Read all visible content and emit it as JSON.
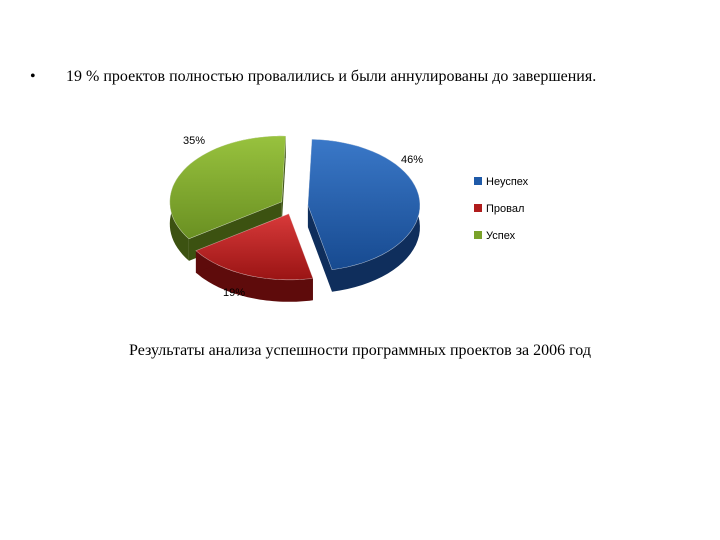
{
  "slide": {
    "bullet": "•",
    "bullet_text": "19 % проектов полностью провалились и были аннулированы до завершения.",
    "caption": "Результаты анализа успешности программных проектов за 2006 год"
  },
  "chart_data": {
    "type": "pie",
    "categories": [
      "Неуспех",
      "Провал",
      "Успех"
    ],
    "values": [
      46,
      19,
      35
    ],
    "labels": [
      "46%",
      "19%",
      "35%"
    ],
    "colors": [
      "#1f5aa8",
      "#b01c1c",
      "#7aa22a"
    ],
    "legend_position": "right",
    "style": "3d-exploded"
  }
}
